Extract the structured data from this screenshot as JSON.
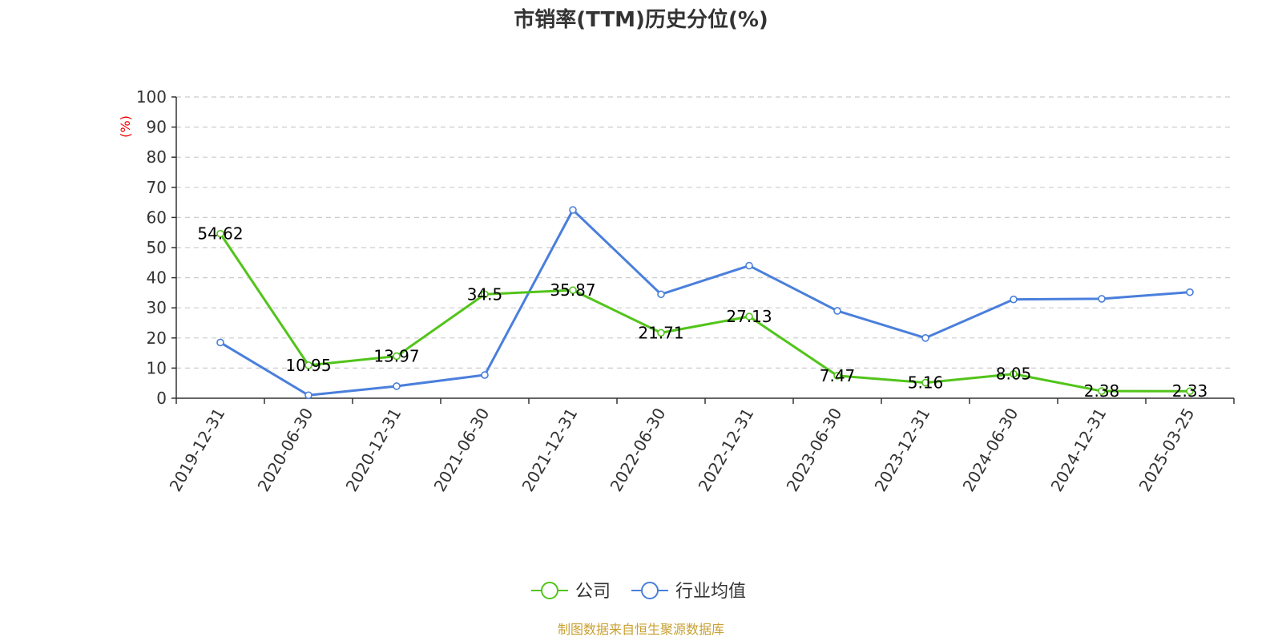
{
  "chart_data": {
    "type": "line",
    "title": "市销率(TTM)历史分位(%)",
    "ylabel": "(%)",
    "ylabel_color": "#ee0000",
    "ylim": [
      0,
      100
    ],
    "yticks": [
      0,
      10,
      20,
      30,
      40,
      50,
      60,
      70,
      80,
      90,
      100
    ],
    "grid": true,
    "legend_position": "bottom-center",
    "categories": [
      "2019-12-31",
      "2020-06-30",
      "2020-12-31",
      "2021-06-30",
      "2021-12-31",
      "2022-06-30",
      "2022-12-31",
      "2023-06-30",
      "2023-12-31",
      "2024-06-30",
      "2024-12-31",
      "2025-03-25"
    ],
    "series": [
      {
        "name": "公司",
        "color": "#52c41a",
        "values": [
          54.62,
          10.95,
          13.97,
          34.5,
          35.87,
          21.71,
          27.13,
          7.47,
          5.16,
          8.05,
          2.38,
          2.33
        ],
        "labels": [
          "54.62",
          "10.95",
          "13.97",
          "34.5",
          "35.87",
          "21.71",
          "27.13",
          "7.47",
          "5.16",
          "8.05",
          "2.38",
          "2.33"
        ]
      },
      {
        "name": "行业均值",
        "color": "#4a7fdc",
        "values": [
          18.5,
          1.0,
          4.0,
          7.7,
          62.5,
          34.5,
          44.0,
          29.0,
          20.0,
          32.8,
          33.0,
          35.2
        ]
      }
    ]
  },
  "source_text": "制图数据来自恒生聚源数据库",
  "source_color": "#c8a032"
}
